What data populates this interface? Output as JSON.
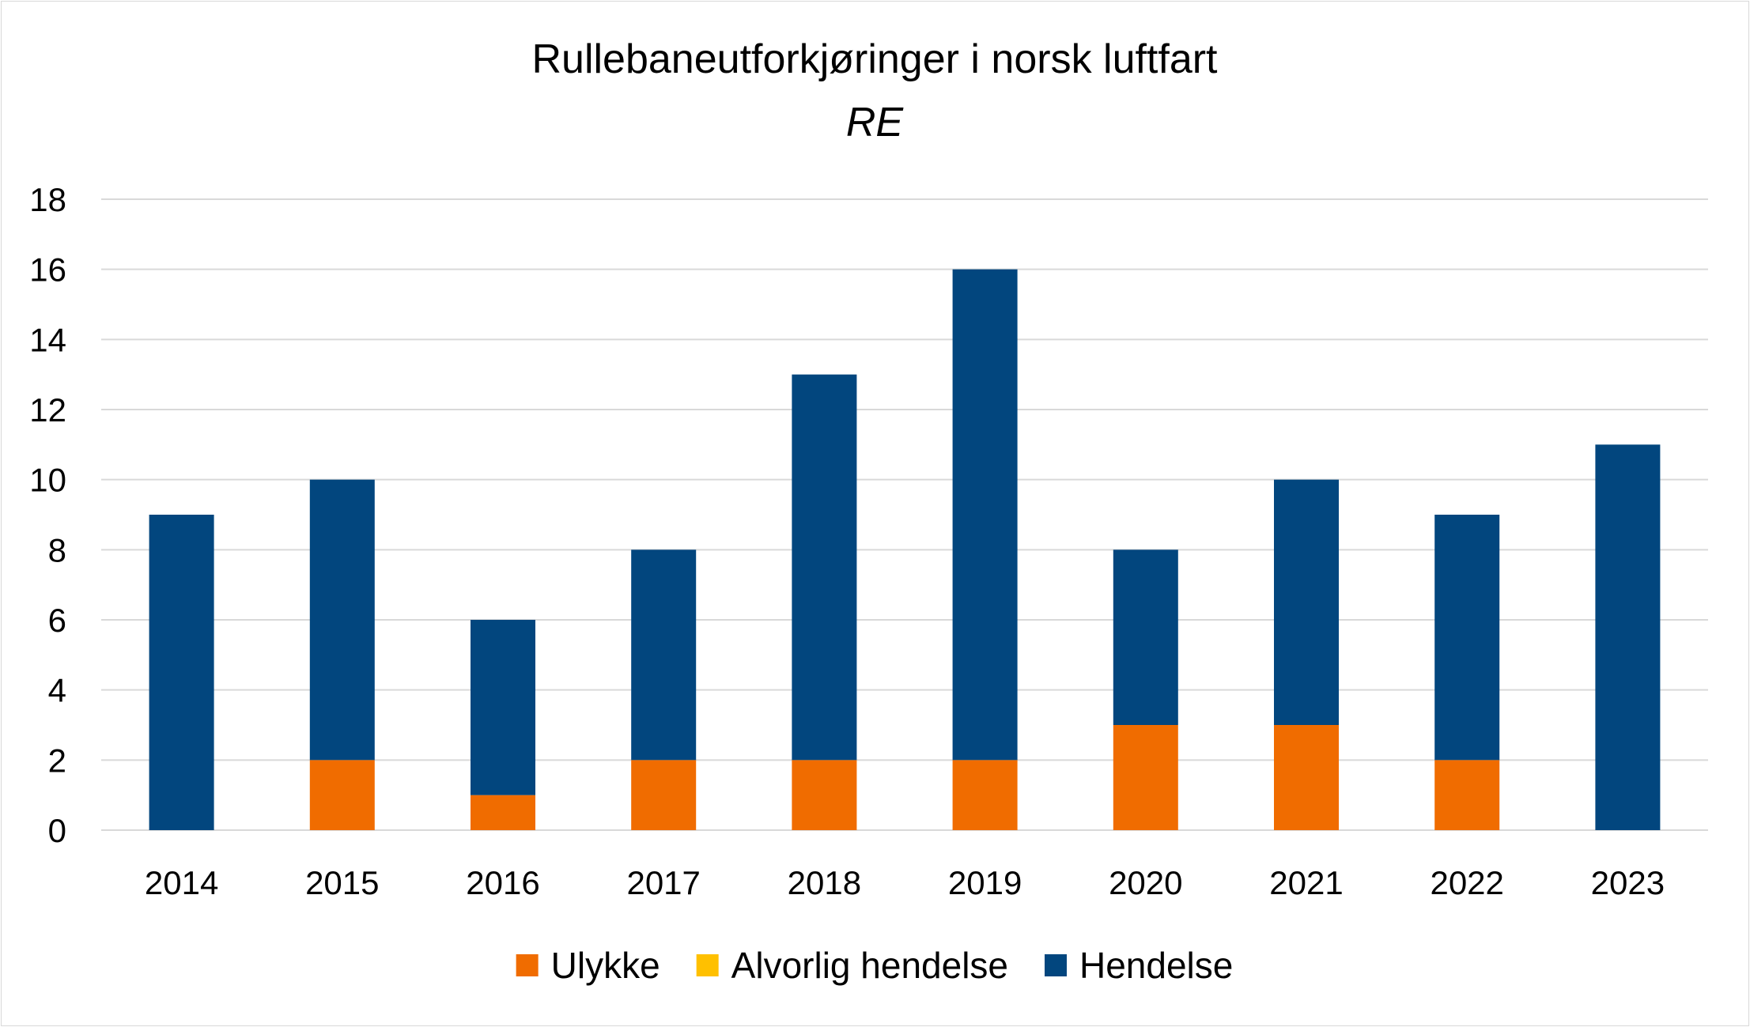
{
  "chart_data": {
    "type": "bar",
    "stacked": true,
    "title": "Rullebaneutforkjøringer i norsk luftfart",
    "subtitle": "RE",
    "xlabel": "",
    "ylabel": "",
    "categories": [
      "2014",
      "2015",
      "2016",
      "2017",
      "2018",
      "2019",
      "2020",
      "2021",
      "2022",
      "2023"
    ],
    "series": [
      {
        "name": "Ulykke",
        "color": "#f06c00",
        "values": [
          0,
          2,
          1,
          2,
          2,
          2,
          3,
          3,
          2,
          0
        ]
      },
      {
        "name": "Alvorlig hendelse",
        "color": "#ffc000",
        "values": [
          0,
          0,
          0,
          0,
          0,
          0,
          0,
          0,
          0,
          0
        ]
      },
      {
        "name": "Hendelse",
        "color": "#02467e",
        "values": [
          9,
          8,
          5,
          6,
          11,
          14,
          5,
          7,
          7,
          11
        ]
      }
    ],
    "ylim": [
      0,
      18
    ],
    "yticks": [
      0,
      2,
      4,
      6,
      8,
      10,
      12,
      14,
      16,
      18
    ],
    "grid": true,
    "legend": "bottom"
  }
}
